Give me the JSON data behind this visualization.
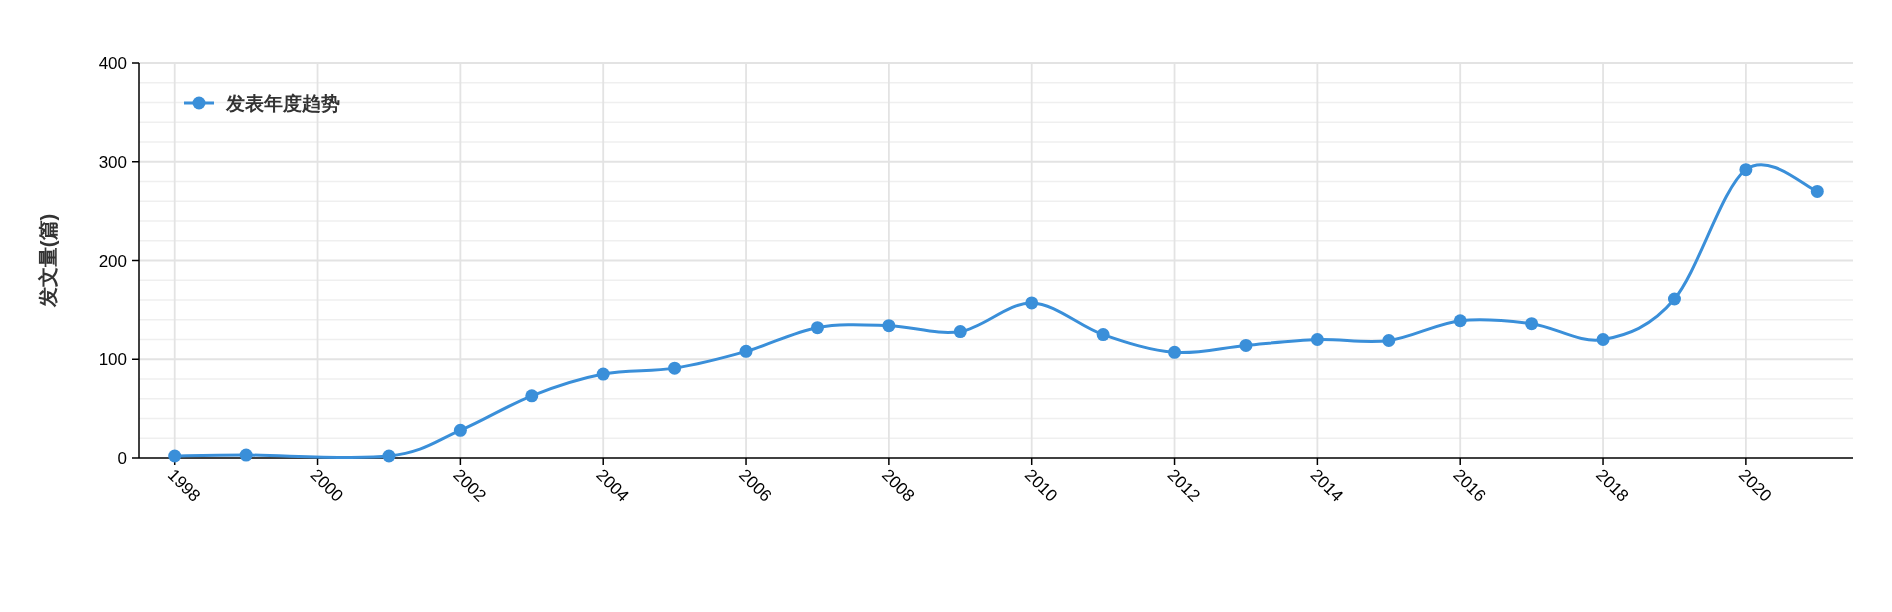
{
  "chart_data": {
    "type": "line",
    "ylabel": "发文量(篇)",
    "x": [
      1998,
      1999,
      2001,
      2002,
      2003,
      2004,
      2005,
      2006,
      2007,
      2008,
      2009,
      2010,
      2011,
      2012,
      2013,
      2014,
      2015,
      2016,
      2017,
      2018,
      2019,
      2020,
      2021
    ],
    "series": [
      {
        "name": "发表年度趋势",
        "color": "#3a8fd9",
        "values": [
          2,
          3,
          2,
          28,
          63,
          85,
          91,
          108,
          132,
          134,
          128,
          157,
          125,
          107,
          114,
          120,
          119,
          139,
          136,
          120,
          161,
          292,
          270
        ]
      }
    ],
    "xlim": [
      1997.5,
      2021.5
    ],
    "xticks": [
      1998,
      2000,
      2002,
      2004,
      2006,
      2008,
      2010,
      2012,
      2014,
      2016,
      2018,
      2020
    ],
    "ylim": [
      0,
      400
    ],
    "yticks": [
      0,
      {
        "value": 20,
        "label": null
      },
      {
        "value": 40,
        "label": null
      },
      {
        "value": 60,
        "label": null
      },
      {
        "value": 80,
        "label": null
      },
      100,
      {
        "value": 120,
        "label": null
      },
      {
        "value": 140,
        "label": null
      },
      {
        "value": 160,
        "label": null
      },
      {
        "value": 180,
        "label": null
      },
      200,
      {
        "value": 220,
        "label": null
      },
      {
        "value": 240,
        "label": null
      },
      {
        "value": 260,
        "label": null
      },
      {
        "value": 280,
        "label": null
      },
      300,
      {
        "value": 320,
        "label": null
      },
      {
        "value": 340,
        "label": null
      },
      {
        "value": 360,
        "label": null
      },
      {
        "value": 380,
        "label": null
      },
      400
    ],
    "grid": true,
    "legend": "top left",
    "marker": "circle",
    "line_style": "solid"
  }
}
